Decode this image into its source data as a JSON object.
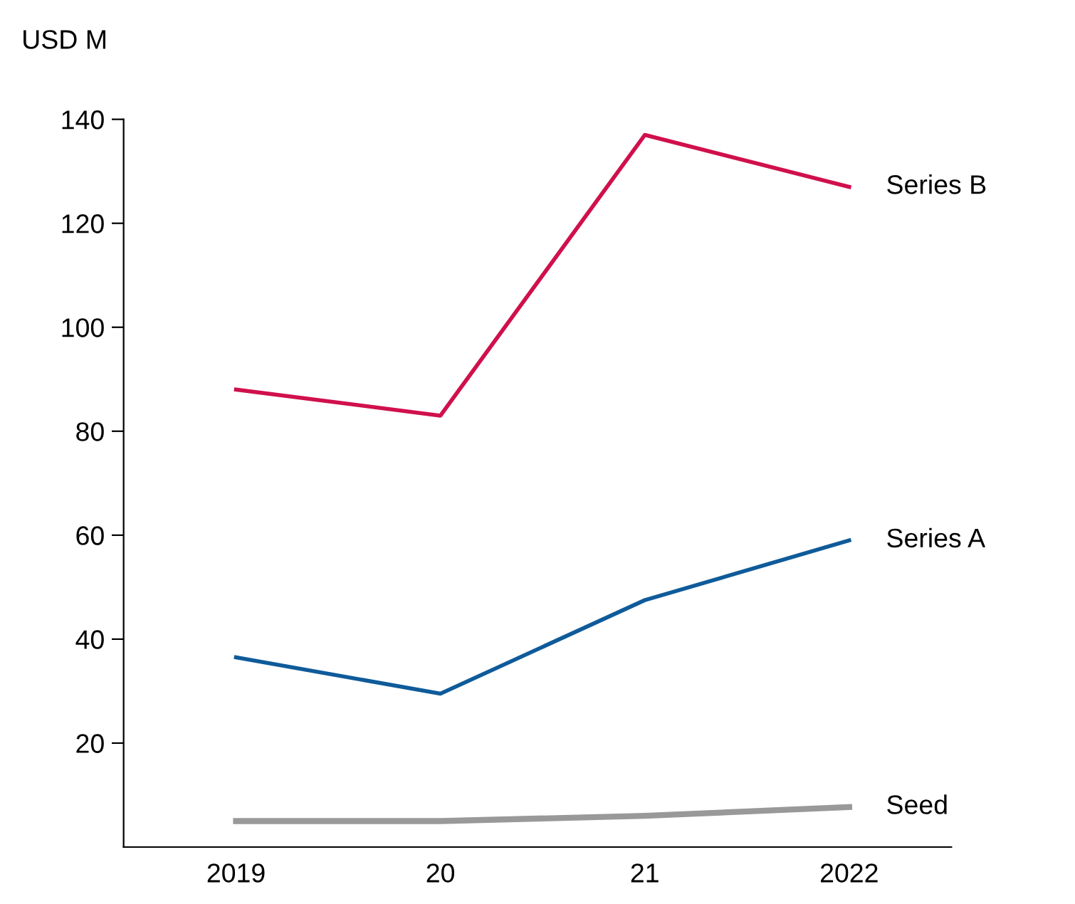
{
  "chart_data": {
    "type": "line",
    "ylabel": "USD M",
    "categories": [
      "2019",
      "20",
      "21",
      "2022"
    ],
    "series": [
      {
        "name": "Series B",
        "color": "#d0104c",
        "values": [
          88,
          83,
          137,
          127
        ]
      },
      {
        "name": "Series A",
        "color": "#0f5b9a",
        "values": [
          36.5,
          29.5,
          47.5,
          59
        ]
      },
      {
        "name": "Seed",
        "color": "#999999",
        "values": [
          5,
          5,
          6,
          7.7
        ]
      }
    ],
    "ylim": [
      0,
      140
    ],
    "yticks": [
      20,
      40,
      60,
      80,
      100,
      120,
      140
    ],
    "grid": false,
    "legend": false,
    "marker": "none",
    "line_style": "solid"
  }
}
